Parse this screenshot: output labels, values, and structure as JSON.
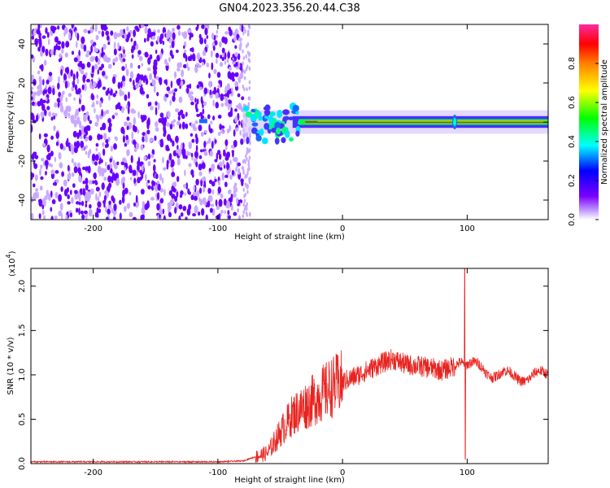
{
  "title": "GN04.2023.356.20.44.C38",
  "colors": {
    "speckle_dark": "#6a00ff",
    "speckle_light": "#c9a9ff",
    "snr_line": "#e8231f",
    "axes": "#000000"
  },
  "colorbar": {
    "label": "Normalized spectral amplitude",
    "ticks": [
      "0.0",
      "0.2",
      "0.4",
      "0.6",
      "0.8"
    ],
    "tick_values": [
      0,
      0.2,
      0.4,
      0.6,
      0.8
    ],
    "range": [
      0,
      1
    ],
    "colormap": "rainbow (magenta-blue-cyan-green-yellow-red-pink)"
  },
  "chart_data": [
    {
      "type": "heatmap",
      "title": "GN04.2023.356.20.44.C38",
      "xlabel": "Height of straight line (km)",
      "ylabel": "Frequency (Hz)",
      "xlim": [
        -250,
        165
      ],
      "ylim": [
        -50,
        50
      ],
      "x_ticks": [
        -200,
        -100,
        0,
        100
      ],
      "x_tick_labels": [
        "-200",
        "-100",
        "0",
        "100"
      ],
      "y_ticks": [
        -40,
        -20,
        0,
        20,
        40
      ],
      "y_tick_labels": [
        "-40",
        "-20",
        "0",
        "20",
        "40"
      ],
      "noise_region_x": [
        -250,
        -80
      ],
      "ridge_frequency": 0,
      "ridge_x_start": -80,
      "spike_x": 90
    },
    {
      "type": "line",
      "xlabel": "Height of straight line (km)",
      "ylabel": "SNR (10 * v/v)",
      "scale_label": "(x10",
      "scale_exponent": "4",
      "xlim": [
        -250,
        165
      ],
      "ylim": [
        0,
        2.2
      ],
      "x_ticks": [
        -200,
        -100,
        0,
        100
      ],
      "x_tick_labels": [
        "-200",
        "-100",
        "0",
        "100"
      ],
      "y_ticks": [
        0,
        0.5,
        1.0,
        1.5,
        2.0
      ],
      "y_tick_labels": [
        "0.0",
        "0.5",
        "1.0",
        "1.5",
        "2.0"
      ],
      "series": [
        {
          "x": [
            -250,
            -150,
            -100,
            -80,
            -60,
            -50,
            -40,
            -30,
            -20,
            -10,
            0,
            10,
            20,
            30,
            40,
            50,
            60,
            70,
            80,
            90,
            95,
            98,
            100,
            110,
            120,
            130,
            140,
            150,
            165
          ],
          "y": [
            0.02,
            0.02,
            0.02,
            0.03,
            0.12,
            0.35,
            0.55,
            0.65,
            0.75,
            0.85,
            0.92,
            0.98,
            1.05,
            1.12,
            1.18,
            1.12,
            1.1,
            1.08,
            1.05,
            1.1,
            1.15,
            1.1,
            1.12,
            1.08,
            1.02,
            1.0,
            0.98,
            0.97,
            1.02
          ]
        }
      ],
      "spike": {
        "x": 98,
        "max": 2.2,
        "min": 0.05
      }
    }
  ]
}
